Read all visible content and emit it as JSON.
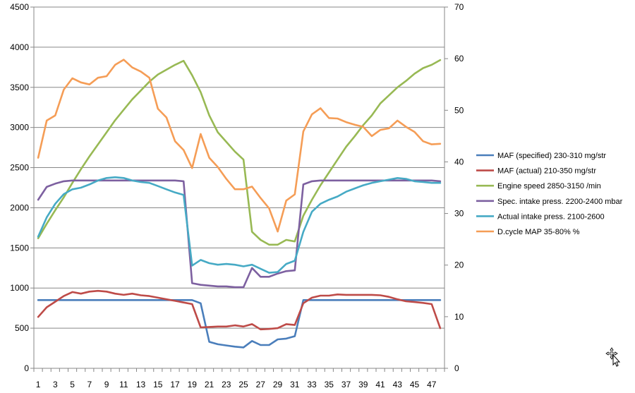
{
  "chart_data": {
    "type": "line",
    "title": "",
    "xlabel": "",
    "ylabel": "",
    "x": [
      1,
      2,
      3,
      4,
      5,
      6,
      7,
      8,
      9,
      10,
      11,
      12,
      13,
      14,
      15,
      16,
      17,
      18,
      19,
      20,
      21,
      22,
      23,
      24,
      25,
      26,
      27,
      28,
      29,
      30,
      31,
      32,
      33,
      34,
      35,
      36,
      37,
      38,
      39,
      40,
      41,
      42,
      43,
      44,
      45,
      46,
      47,
      48
    ],
    "x_tick_labels": [
      "1",
      "3",
      "5",
      "7",
      "9",
      "11",
      "13",
      "15",
      "17",
      "19",
      "21",
      "23",
      "25",
      "27",
      "29",
      "31",
      "33",
      "35",
      "37",
      "39",
      "41",
      "43",
      "45",
      "47"
    ],
    "y_left": {
      "ylim": [
        0,
        4500
      ],
      "ticks": [
        0,
        500,
        1000,
        1500,
        2000,
        2500,
        3000,
        3500,
        4000,
        4500
      ]
    },
    "y_right": {
      "ylim": [
        0,
        70
      ],
      "ticks": [
        0,
        10,
        20,
        30,
        40,
        50,
        60,
        70
      ]
    },
    "grid": true,
    "legend_position": "right",
    "series": [
      {
        "name": "MAF (specified) 230-310  mg/str",
        "color": "#4a7ebb",
        "axis": "left",
        "values": [
          850,
          850,
          850,
          850,
          850,
          850,
          850,
          850,
          850,
          850,
          850,
          850,
          850,
          850,
          850,
          850,
          850,
          850,
          850,
          810,
          330,
          300,
          285,
          270,
          260,
          340,
          290,
          290,
          360,
          370,
          400,
          850,
          850,
          850,
          850,
          850,
          850,
          850,
          850,
          850,
          850,
          850,
          850,
          850,
          850,
          850,
          850,
          850
        ]
      },
      {
        "name": "MAF (actual) 210-350  mg/str",
        "color": "#be4b48",
        "axis": "left",
        "values": [
          640,
          760,
          830,
          900,
          950,
          930,
          955,
          965,
          955,
          930,
          915,
          930,
          910,
          900,
          880,
          860,
          840,
          820,
          800,
          510,
          515,
          520,
          520,
          535,
          520,
          550,
          485,
          490,
          500,
          550,
          540,
          810,
          880,
          905,
          905,
          920,
          915,
          915,
          915,
          915,
          910,
          890,
          860,
          835,
          825,
          815,
          800,
          500
        ]
      },
      {
        "name": "Engine speed 2850-3150  /min",
        "color": "#98b954",
        "axis": "left",
        "values": [
          1620,
          1800,
          1970,
          2130,
          2310,
          2480,
          2640,
          2790,
          2940,
          3090,
          3220,
          3350,
          3460,
          3570,
          3660,
          3720,
          3780,
          3830,
          3650,
          3440,
          3150,
          2940,
          2820,
          2700,
          2600,
          1700,
          1600,
          1540,
          1540,
          1600,
          1580,
          1900,
          2100,
          2280,
          2440,
          2600,
          2760,
          2890,
          3030,
          3150,
          3300,
          3400,
          3500,
          3580,
          3670,
          3740,
          3780,
          3840
        ]
      },
      {
        "name": "Spec. intake press. 2200-2400  mbar",
        "color": "#7d60a0",
        "axis": "left",
        "values": [
          2100,
          2260,
          2300,
          2330,
          2340,
          2340,
          2340,
          2340,
          2340,
          2340,
          2340,
          2340,
          2340,
          2340,
          2340,
          2340,
          2340,
          2330,
          1060,
          1040,
          1030,
          1020,
          1020,
          1010,
          1010,
          1250,
          1140,
          1140,
          1180,
          1210,
          1220,
          2290,
          2330,
          2340,
          2340,
          2340,
          2340,
          2340,
          2340,
          2340,
          2340,
          2340,
          2340,
          2340,
          2340,
          2340,
          2340,
          2330
        ]
      },
      {
        "name": "Actual intake press. 2100-2600",
        "color": "#46aac5",
        "axis": "left",
        "values": [
          1640,
          1880,
          2050,
          2170,
          2230,
          2250,
          2290,
          2340,
          2370,
          2380,
          2370,
          2340,
          2320,
          2310,
          2270,
          2230,
          2190,
          2160,
          1280,
          1350,
          1310,
          1290,
          1300,
          1290,
          1270,
          1290,
          1240,
          1190,
          1200,
          1300,
          1340,
          1700,
          1950,
          2050,
          2100,
          2140,
          2200,
          2240,
          2280,
          2310,
          2330,
          2350,
          2370,
          2360,
          2330,
          2320,
          2310,
          2310
        ]
      },
      {
        "name": "D.cycle MAP 35-80%  %",
        "color": "#f59d56",
        "axis": "right",
        "values": [
          40.8,
          48,
          49,
          54,
          56.2,
          55.4,
          55,
          56.3,
          56.6,
          58.8,
          59.8,
          58.3,
          57.5,
          56.3,
          50.3,
          48.6,
          44,
          42.3,
          38.8,
          45.4,
          40.8,
          39,
          36.7,
          34.7,
          34.7,
          35.2,
          33,
          31,
          26.5,
          32.5,
          33.7,
          45.9,
          49.2,
          50.4,
          48.5,
          48.4,
          47.7,
          47.2,
          46.8,
          45,
          46.2,
          46.5,
          48,
          46.8,
          45.8,
          44,
          43.4,
          43.5
        ]
      }
    ]
  }
}
